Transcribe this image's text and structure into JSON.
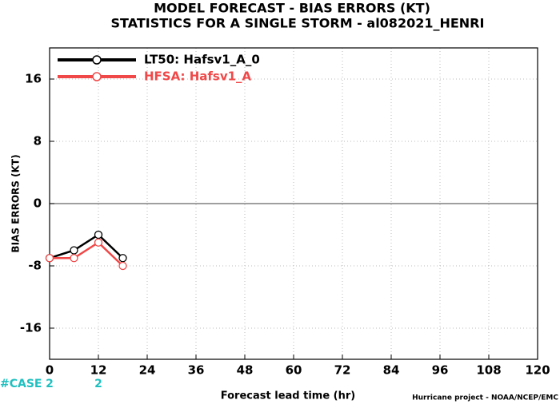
{
  "chart_data": {
    "type": "line",
    "title": "MODEL FORECAST - BIAS ERRORS (KT)",
    "subtitle": "STATISTICS FOR A SINGLE STORM - al082021_HENRI",
    "x_label": "Forecast lead time (hr)",
    "y_label": "BIAS ERRORS (KT)",
    "footer": "Hurricane project - NOAA/NCEP/EMC",
    "case_label": "#CASE",
    "x": [
      0,
      6,
      12,
      18
    ],
    "case_counts": [
      2,
      null,
      2,
      null
    ],
    "series": [
      {
        "name": "LT50: Hafsv1_A_0",
        "color": "#000000",
        "values": [
          -7,
          -6,
          -4,
          -7
        ]
      },
      {
        "name": "HFSA: Hafsv1_A",
        "color": "#f04848",
        "values": [
          -7,
          -7,
          -5,
          -8
        ]
      }
    ],
    "xlim": [
      0,
      120
    ],
    "xticks": [
      0,
      12,
      24,
      36,
      48,
      60,
      72,
      84,
      96,
      108,
      120
    ],
    "ylim": [
      -20,
      20
    ],
    "yticks": [
      -16,
      -8,
      0,
      8,
      16
    ],
    "grid": true,
    "legend": "upper left"
  }
}
